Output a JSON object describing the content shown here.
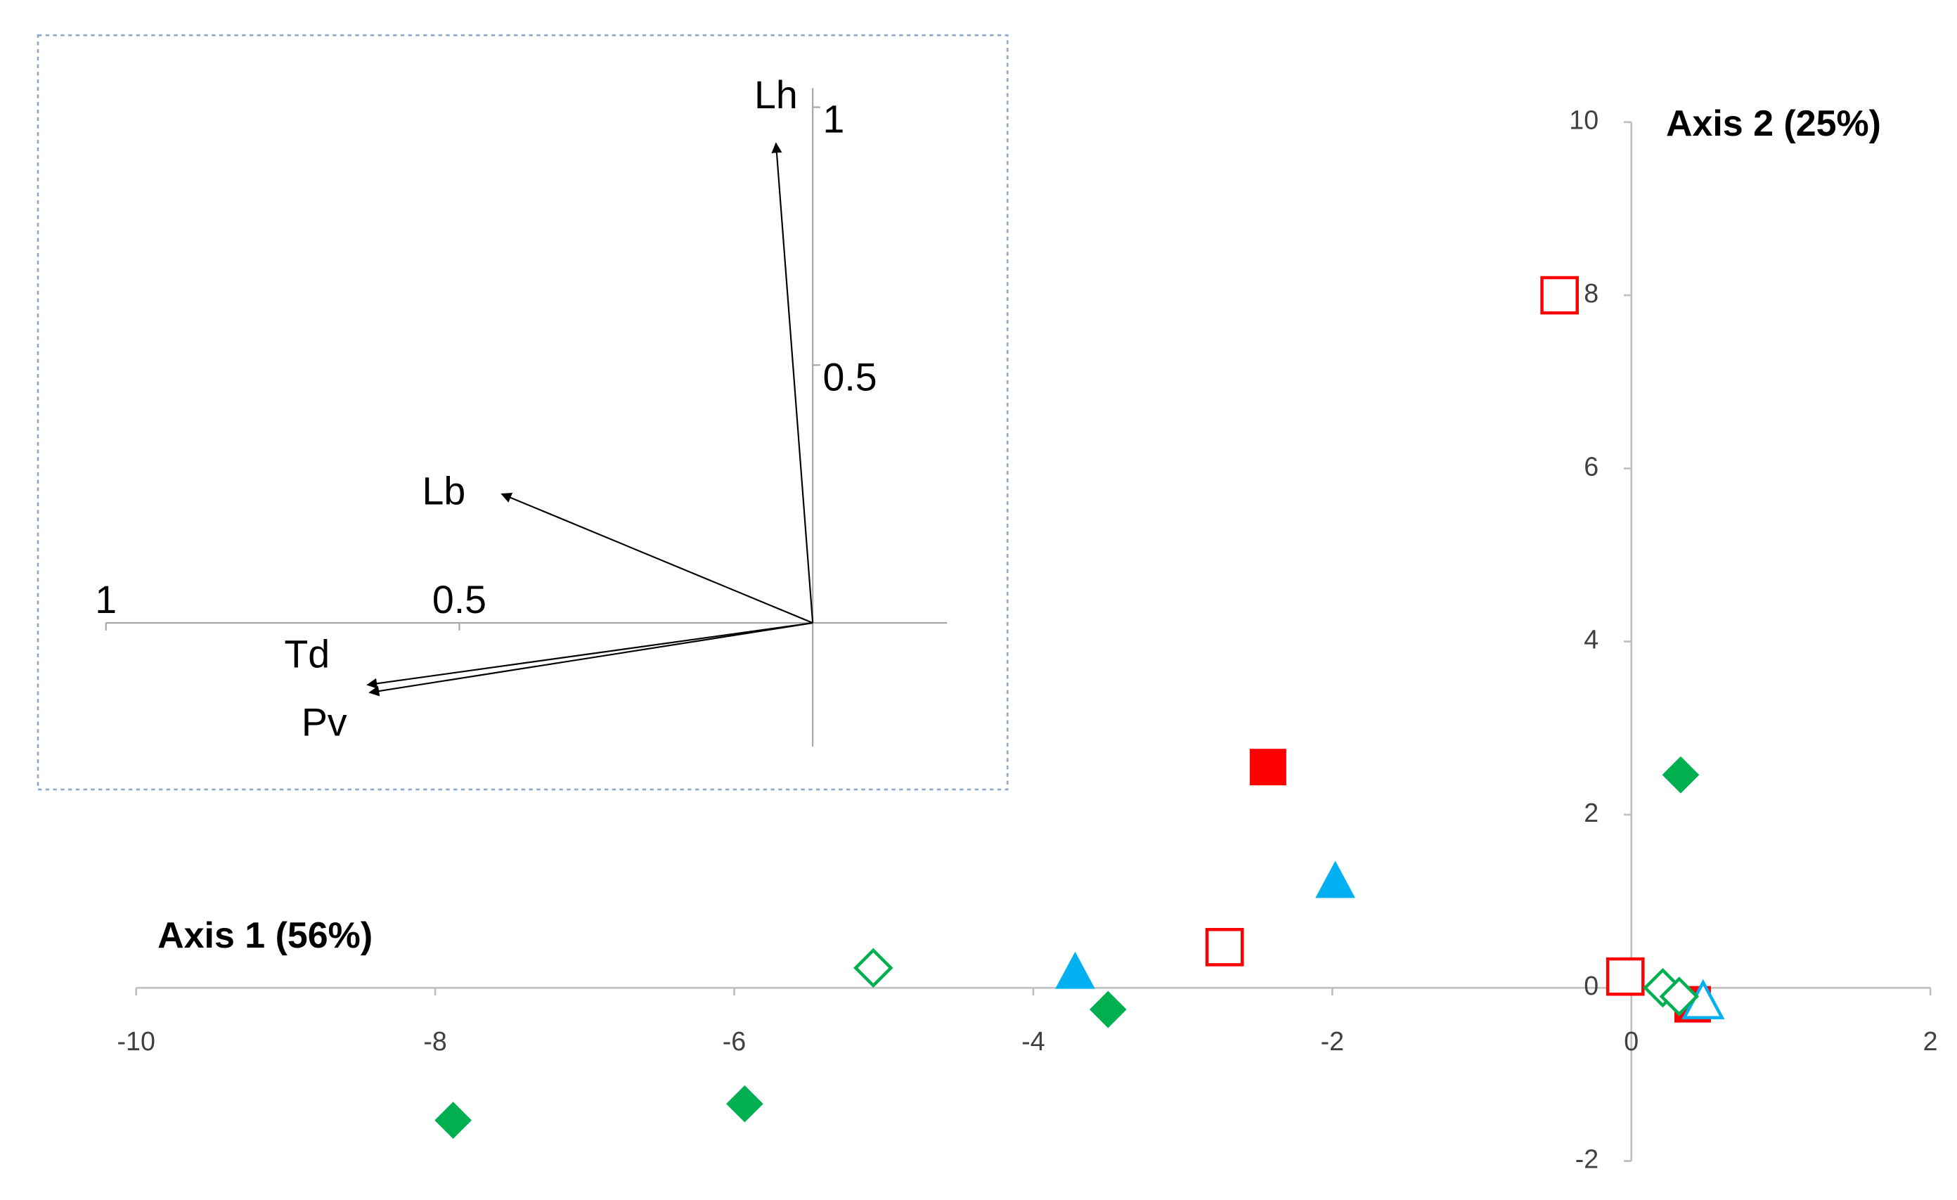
{
  "chart_data": [
    {
      "type": "scatter",
      "xlabel": "Axis 1 (56%)",
      "ylabel": "Axis 2 (25%)",
      "xlim": [
        -10,
        2
      ],
      "ylim": [
        -2,
        10
      ],
      "xticks": [
        -10,
        -8,
        -6,
        -4,
        -2,
        0,
        2
      ],
      "yticks": [
        -2,
        0,
        2,
        4,
        6,
        8,
        10
      ],
      "series": [
        {
          "marker": "square",
          "filled": false,
          "color": "#ff0000",
          "x": [
            -0.48,
            -2.72,
            -0.04
          ],
          "values": [
            8.0,
            0.47,
            0.13
          ]
        },
        {
          "marker": "square",
          "filled": true,
          "color": "#ff0000",
          "x": [
            -2.43,
            0.41
          ],
          "values": [
            2.55,
            -0.19
          ]
        },
        {
          "marker": "triangle",
          "filled": true,
          "color": "#00b0f0",
          "x": [
            -3.72,
            -1.98
          ],
          "values": [
            0.17,
            1.22
          ]
        },
        {
          "marker": "triangle",
          "filled": false,
          "color": "#00b0f0",
          "x": [
            0.48
          ],
          "values": [
            -0.17
          ]
        },
        {
          "marker": "diamond",
          "filled": true,
          "color": "#00b050",
          "x": [
            -7.88,
            -5.93,
            -3.5,
            0.33
          ],
          "values": [
            -1.53,
            -1.34,
            -0.25,
            2.46
          ]
        },
        {
          "marker": "diamond",
          "filled": false,
          "color": "#00b050",
          "x": [
            -5.07,
            0.21,
            0.32
          ],
          "values": [
            0.23,
            0.0,
            -0.1
          ]
        }
      ]
    },
    {
      "type": "vector",
      "xlim": [
        1,
        -0.19
      ],
      "ylim": [
        -0.24,
        1.037
      ],
      "xticks": [
        1,
        0.5
      ],
      "yticks": [
        1,
        0.5
      ],
      "vectors": [
        {
          "label": "Lh",
          "x": 0.052,
          "y": 0.93
        },
        {
          "label": "Lb",
          "x": 0.44,
          "y": 0.25
        },
        {
          "label": "Td",
          "x": 0.63,
          "y": -0.12
        },
        {
          "label": "Pv",
          "x": 0.627,
          "y": -0.135
        }
      ]
    }
  ]
}
